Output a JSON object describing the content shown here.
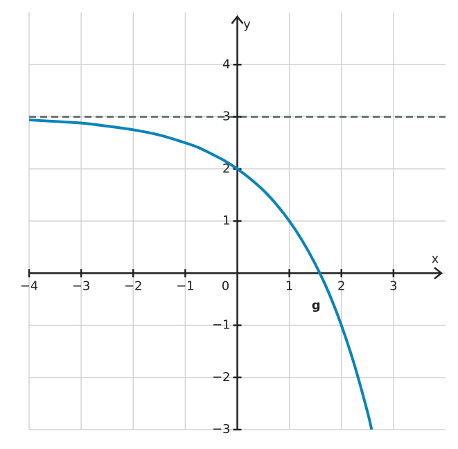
{
  "chart_data": {
    "type": "line",
    "x_label": "x",
    "y_label": "y",
    "origin_label": "0",
    "xlim": [
      -4,
      4
    ],
    "ylim": [
      -3,
      5
    ],
    "xticks": [
      {
        "value": -4,
        "label": "−4"
      },
      {
        "value": -3,
        "label": "−3"
      },
      {
        "value": -2,
        "label": "−2"
      },
      {
        "value": -1,
        "label": "−1"
      },
      1,
      2,
      3
    ],
    "yticks": [
      {
        "value": -3,
        "label": "−3"
      },
      {
        "value": -2,
        "label": "−2"
      },
      {
        "value": -1,
        "label": "−1"
      },
      1,
      2,
      3,
      4
    ],
    "grid": true,
    "asymptote": 3,
    "asymptote_color": "#6e7378",
    "x": [
      -4,
      -3.5,
      -3,
      -2.5,
      -2,
      -1.5,
      -1,
      -0.75,
      -0.5,
      -0.25,
      0,
      0.25,
      0.5,
      0.75,
      1,
      1.25,
      1.5,
      1.75,
      2,
      2.25,
      2.5,
      2.58
    ],
    "series": [
      {
        "name": "g",
        "color": "#0a84b8",
        "values": [
          2.94,
          2.91,
          2.88,
          2.82,
          2.75,
          2.65,
          2.5,
          2.41,
          2.29,
          2.16,
          2,
          1.81,
          1.59,
          1.32,
          1,
          0.62,
          0.17,
          -0.36,
          -1,
          -1.76,
          -2.66,
          -3
        ]
      }
    ]
  }
}
